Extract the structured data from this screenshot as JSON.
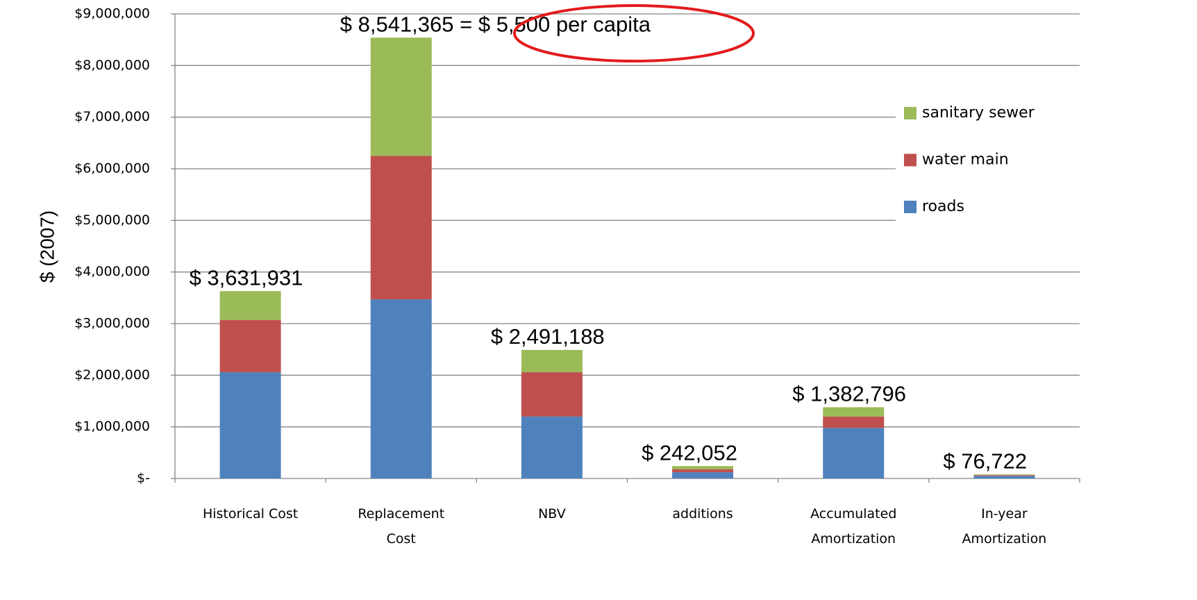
{
  "chart_data": {
    "type": "stacked_bar",
    "ylabel": "$ (2007)",
    "categories": [
      "Historical Cost",
      "Replacement Cost",
      "NBV",
      "additions",
      "Accumulated Amortization",
      "In-year Amortization"
    ],
    "series": [
      {
        "name": "roads",
        "color": "#4f81bd",
        "values": [
          2060000,
          3470000,
          1200000,
          120000,
          980000,
          50000
        ]
      },
      {
        "name": "water main",
        "color": "#c0504d",
        "values": [
          1010000,
          2780000,
          860000,
          60000,
          220000,
          15000
        ]
      },
      {
        "name": "sanitary sewer",
        "color": "#9bbb59",
        "values": [
          560000,
          2290000,
          430000,
          60000,
          180000,
          12000
        ]
      }
    ],
    "total_labels": [
      "$ 3,631,931",
      "$ 8,541,365 = $ 5,500 per capita",
      "$ 2,491,188",
      "$ 242,052",
      "$ 1,382,796",
      "$ 76,722"
    ],
    "ylim": [
      0,
      9000000
    ],
    "yticks": [
      {
        "value": 0,
        "label": "$-"
      },
      {
        "value": 1000000,
        "label": "$1,000,000"
      },
      {
        "value": 2000000,
        "label": "$2,000,000"
      },
      {
        "value": 3000000,
        "label": "$3,000,000"
      },
      {
        "value": 4000000,
        "label": "$4,000,000"
      },
      {
        "value": 5000000,
        "label": "$5,000,000"
      },
      {
        "value": 6000000,
        "label": "$6,000,000"
      },
      {
        "value": 7000000,
        "label": "$7,000,000"
      },
      {
        "value": 8000000,
        "label": "$8,000,000"
      },
      {
        "value": 9000000,
        "label": "$9,000,000"
      }
    ],
    "grid": true,
    "legend": "right"
  }
}
